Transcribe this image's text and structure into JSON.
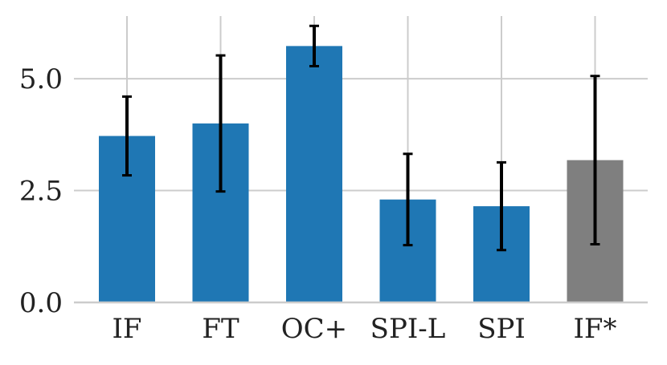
{
  "chart_data": {
    "type": "bar",
    "title": "",
    "xlabel": "",
    "ylabel": "",
    "categories": [
      "IF",
      "FT",
      "OC+",
      "SPI-L",
      "SPI",
      "IF*"
    ],
    "values": [
      3.72,
      4.0,
      5.73,
      2.3,
      2.15,
      3.18
    ],
    "errors": [
      0.88,
      1.52,
      0.45,
      1.02,
      0.98,
      1.88
    ],
    "bar_colors": [
      "#1f77b4",
      "#1f77b4",
      "#1f77b4",
      "#1f77b4",
      "#1f77b4",
      "#7f7f7f"
    ],
    "ylim": [
      0,
      6.4
    ],
    "yticks": [
      0.0,
      2.5,
      5.0
    ],
    "ytick_labels": [
      "0.0",
      "2.5",
      "5.0"
    ],
    "grid": true,
    "grid_color": "#cccccc",
    "error_color": "#000000"
  }
}
